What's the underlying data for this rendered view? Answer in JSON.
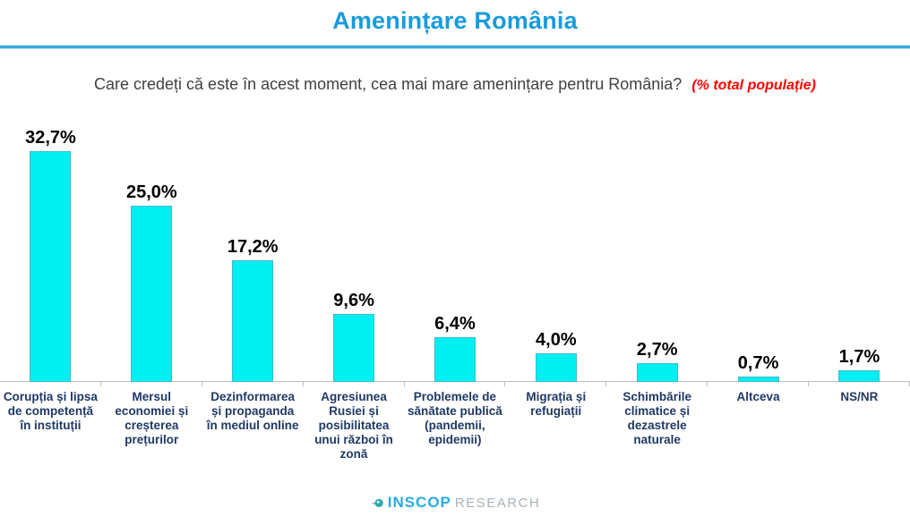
{
  "header": {
    "title": "Amenințare România"
  },
  "question": {
    "text": "Care credeți că este în acest moment, cea mai mare amenințare pentru România?",
    "note": "(% total populație)"
  },
  "chart_data": {
    "type": "bar",
    "title": "Amenințare România",
    "subtitle": "Care credeți că este în acest moment, cea mai mare amenințare pentru România? (% total populație)",
    "categories": [
      "Corupția și lipsa de competență în instituții",
      "Mersul economiei și creșterea prețurilor",
      "Dezinformarea și propaganda în mediul online",
      "Agresiunea Rusiei și posibilitatea unui război în zonă",
      "Problemele de sănătate publică (pandemii, epidemii)",
      "Migrația și refugiații",
      "Schimbările climatice și dezastrele naturale",
      "Altceva",
      "NS/NR"
    ],
    "values": [
      32.7,
      25.0,
      17.2,
      9.6,
      6.4,
      4.0,
      2.7,
      0.7,
      1.7
    ],
    "value_labels": [
      "32,7%",
      "25,0%",
      "17,2%",
      "9,6%",
      "6,4%",
      "4,0%",
      "2,7%",
      "0,7%",
      "1,7%"
    ],
    "unit": "%",
    "xlabel": "",
    "ylabel": "",
    "ylim": [
      0,
      38
    ],
    "grid": false,
    "legend": false,
    "bar_color": "#00EFF2",
    "bar_border_color": "#3FB9CC",
    "value_label_color": "#000000",
    "category_label_color": "#1F3864",
    "axis_color": "#BFBFBF"
  },
  "footer": {
    "brand_main": "INSCOP",
    "brand_sub": "RESEARCH"
  },
  "colors": {
    "title_blue": "#189CDB",
    "rule_blue": "#3AABDC",
    "question_gray": "#404040",
    "note_red": "#FF0000"
  }
}
